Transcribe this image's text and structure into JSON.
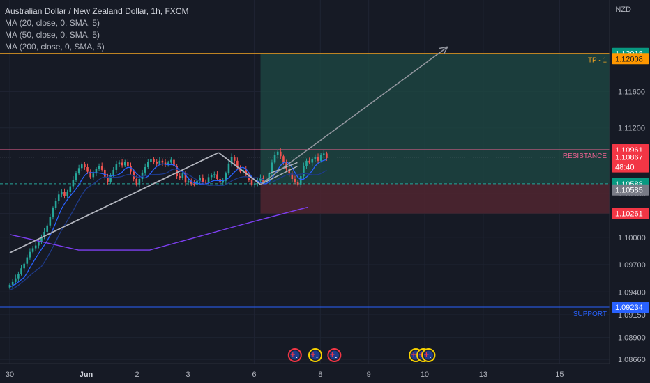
{
  "header": {
    "title": "Australian Dollar / New Zealand Dollar, 1h, FXCM",
    "indicators": [
      "MA (20, close, 0, SMA, 5)",
      "MA (50, close, 0, SMA, 5)",
      "MA (200, close, 0, SMA, 5)"
    ],
    "currency": "NZD"
  },
  "chart_data": {
    "type": "candlestick",
    "symbol": "AUDNZD",
    "timeframe": "1h",
    "ylim": [
      1.0855,
      1.1235
    ],
    "y_ticks": [
      "1.08660",
      "1.08900",
      "1.09150",
      "1.09400",
      "1.09700",
      "1.10000",
      "1.10261",
      "1.10480",
      "1.11200",
      "1.11600"
    ],
    "y_tick_values": [
      1.0866,
      1.089,
      1.0915,
      1.094,
      1.097,
      1.1,
      1.10261,
      1.1048,
      1.112,
      1.116
    ],
    "x_ticks": [
      "30",
      "Jun",
      "2",
      "3",
      "6",
      "8",
      "9",
      "10",
      "13",
      "15"
    ],
    "x_tick_values": [
      0,
      3,
      5,
      7,
      9.6,
      12.2,
      14.1,
      16.3,
      18.6,
      21.6
    ],
    "price_close": [
      1.0948,
      1.0951,
      1.0955,
      1.096,
      1.0966,
      1.0971,
      1.0978,
      1.0984,
      1.0988,
      1.0991,
      1.0995,
      1.1,
      1.1006,
      1.1013,
      1.1022,
      1.1032,
      1.104,
      1.1047,
      1.105,
      1.1045,
      1.105,
      1.1056,
      1.1063,
      1.107,
      1.1076,
      1.108,
      1.1077,
      1.1072,
      1.1066,
      1.107,
      1.1075,
      1.1078,
      1.1074,
      1.1066,
      1.1061,
      1.1068,
      1.1074,
      1.108,
      1.1082,
      1.1079,
      1.1083,
      1.1078,
      1.1072,
      1.1064,
      1.1058,
      1.1064,
      1.1071,
      1.1077,
      1.1083,
      1.1086,
      1.1083,
      1.1081,
      1.1084,
      1.1082,
      1.108,
      1.1082,
      1.1085,
      1.1078,
      1.1067,
      1.1065,
      1.107,
      1.106,
      1.1062,
      1.1059,
      1.1058,
      1.1062,
      1.1065,
      1.1061,
      1.106,
      1.1066,
      1.1068,
      1.1069,
      1.1064,
      1.106,
      1.1062,
      1.107,
      1.1081,
      1.1088,
      1.1084,
      1.1077,
      1.1072,
      1.1074,
      1.1069,
      1.1063,
      1.1058,
      1.1059,
      1.1062,
      1.1065,
      1.1061,
      1.1063,
      1.107,
      1.1082,
      1.109,
      1.1094,
      1.1089,
      1.1082,
      1.1075,
      1.107,
      1.1064,
      1.1061,
      1.1058,
      1.1067,
      1.1078,
      1.1084,
      1.1082,
      1.1086,
      1.1088,
      1.1084,
      1.109,
      1.1092,
      1.1087
    ],
    "ma20_end": 1.1075,
    "ma50_end": 1.1072,
    "ma200": [
      [
        0,
        1.1003
      ],
      [
        2.7,
        1.0986
      ],
      [
        5.5,
        1.0986
      ],
      [
        9,
        1.1013
      ],
      [
        11.7,
        1.1033
      ]
    ],
    "levels": [
      {
        "name": "TP - 1",
        "price": 1.12018,
        "color": "#f5a623"
      },
      {
        "name": "RESISTANCE",
        "price": 1.10961,
        "color": "#f06292"
      },
      {
        "name": "SUPPORT",
        "price": 1.09234,
        "color": "#2962ff"
      }
    ],
    "price_labels": [
      {
        "text": "1.12018",
        "price": 1.12018,
        "bg": "#089981",
        "fg": "#ffffff"
      },
      {
        "text": "1.12008",
        "price": 1.1196,
        "bg": "#ff9800",
        "fg": "#131722"
      },
      {
        "text": "1.10961",
        "price": 1.10961,
        "bg": "#f23645",
        "fg": "#ffffff"
      },
      {
        "text": "1.10867",
        "price": 1.1088,
        "bg": "#f23645",
        "fg": "#ffffff",
        "sub": "48:40"
      },
      {
        "text": "1.10588",
        "price": 1.10588,
        "bg": "#089981",
        "fg": "#ffffff"
      },
      {
        "text": "1.10585",
        "price": 1.1052,
        "bg": "#787b86",
        "fg": "#ffffff"
      },
      {
        "text": "1.10261",
        "price": 1.10261,
        "bg": "#f23645",
        "fg": "#ffffff"
      },
      {
        "text": "1.09234",
        "price": 1.09234,
        "bg": "#2962ff",
        "fg": "#ffffff"
      }
    ],
    "position": {
      "entry": 1.10588,
      "target": 1.12018,
      "stop": 1.10261,
      "x_start": 9.85,
      "x_end": 21.8
    },
    "arrow": {
      "from": [
        9.85,
        1.1058
      ],
      "to": [
        17.2,
        1.1209
      ]
    },
    "trendline_up": {
      "from": [
        0,
        1.0983
      ],
      "to": [
        8.2,
        1.1093
      ]
    },
    "trendline_down": {
      "from": [
        8.2,
        1.1093
      ],
      "to": [
        9.85,
        1.1058
      ]
    },
    "flag_lines": [
      {
        "from": [
          9.85,
          1.1058
        ],
        "to": [
          11.3,
          1.1078
        ]
      },
      {
        "from": [
          10.2,
          1.107
        ],
        "to": [
          11.3,
          1.1082
        ]
      }
    ],
    "events": [
      {
        "x": 11.2,
        "type": "AU",
        "ring": "#f23645"
      },
      {
        "x": 12.0,
        "type": "AU",
        "ring": "#f5d000"
      },
      {
        "x": 12.75,
        "type": "AU",
        "ring": "#f23645"
      },
      {
        "x": 15.95,
        "type": "AU",
        "ring": "#f5d000"
      },
      {
        "x": 16.25,
        "type": "NZ",
        "ring": "#f5d000"
      },
      {
        "x": 16.45,
        "type": "NZ",
        "ring": "#f5d000"
      }
    ]
  }
}
